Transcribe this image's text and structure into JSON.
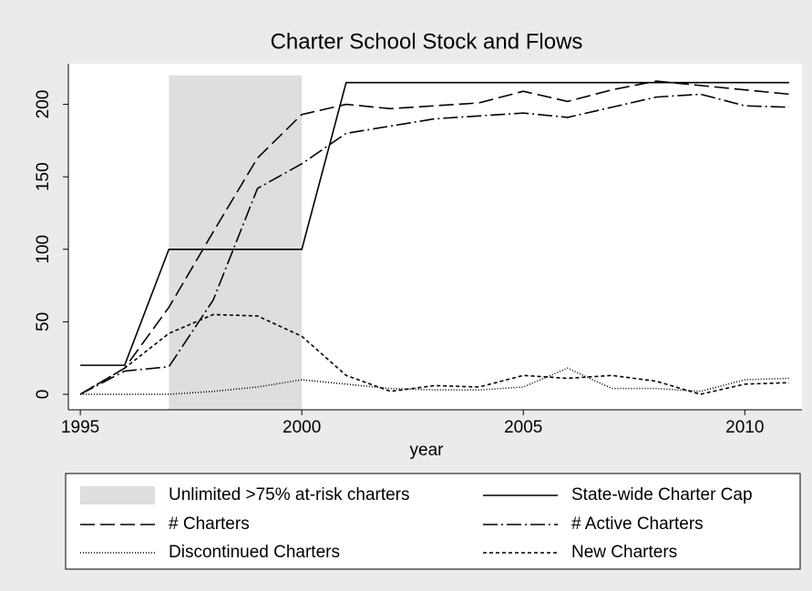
{
  "chart_data": {
    "type": "line",
    "title": "Charter School Stock and Flows",
    "x_label": "year",
    "x": [
      1995,
      1996,
      1997,
      1998,
      1999,
      2000,
      2001,
      2002,
      2003,
      2004,
      2005,
      2006,
      2007,
      2008,
      2009,
      2010,
      2011
    ],
    "shaded": {
      "name": "Unlimited >75% at-risk charters",
      "color": "#dedede",
      "x": [
        1997,
        2000
      ],
      "y": 220
    },
    "series": [
      {
        "name": "State-wide Charter Cap",
        "color": "#000000",
        "dash": "none",
        "values": [
          20,
          20,
          100,
          100,
          100,
          100,
          215,
          215,
          215,
          215,
          215,
          215,
          215,
          215,
          215,
          215,
          215
        ]
      },
      {
        "name": "# Charters",
        "color": "#000000",
        "dash": "16,6",
        "values": [
          0,
          18,
          60,
          112,
          163,
          193,
          200,
          197,
          199,
          201,
          209,
          202,
          210,
          216,
          213,
          210,
          207
        ]
      },
      {
        "name": "# Active Charters",
        "color": "#000000",
        "dash": "16,4,2,4",
        "values": [
          0,
          16,
          19,
          65,
          142,
          159,
          180,
          185,
          190,
          192,
          194,
          191,
          198,
          205,
          207,
          199,
          198
        ]
      },
      {
        "name": "Discontinued Charters",
        "color": "#000000",
        "dash": "1,2",
        "values": [
          0,
          0,
          0,
          2,
          5,
          10,
          7,
          4,
          3,
          3,
          5,
          18,
          4,
          4,
          2,
          10,
          11
        ]
      },
      {
        "name": "New Charters",
        "color": "#000000",
        "dash": "4,3",
        "values": [
          0,
          18,
          42,
          55,
          54,
          40,
          13,
          2,
          6,
          5,
          13,
          11,
          13,
          9,
          0,
          7,
          8
        ]
      }
    ],
    "xlim": [
      1994.73,
      2011.29
    ],
    "ylim": [
      -10.7,
      228
    ],
    "xticks": [
      1995,
      2000,
      2005,
      2010
    ],
    "yticks": [
      0,
      50,
      100,
      150,
      200
    ]
  }
}
